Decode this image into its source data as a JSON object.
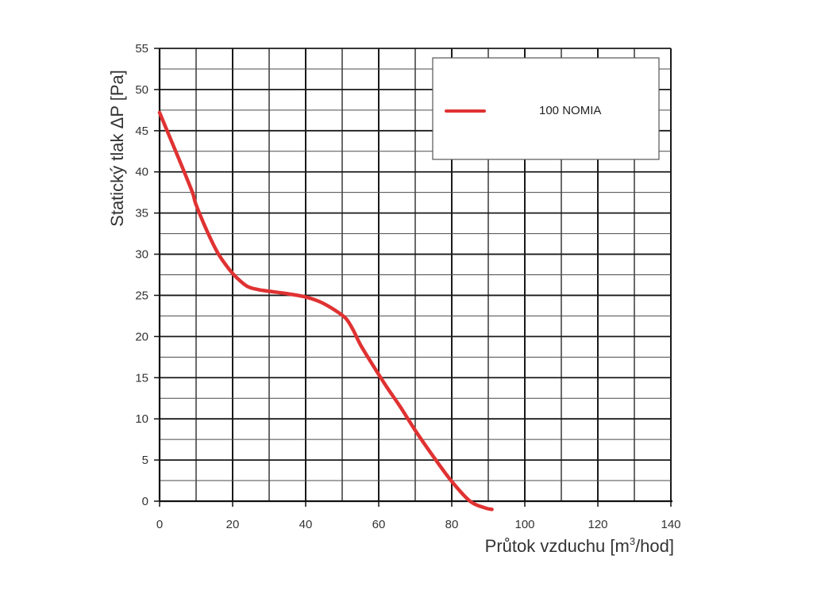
{
  "chart_data": {
    "type": "line",
    "title": "",
    "xlabel": "Průtok vzduchu [m³/hod]",
    "ylabel": "Statický tlak  ΔP [Pa]",
    "xlim": [
      0,
      140
    ],
    "ylim": [
      0,
      55
    ],
    "x_ticks": [
      0,
      20,
      40,
      60,
      80,
      100,
      120,
      140
    ],
    "y_ticks": [
      0,
      5,
      10,
      15,
      20,
      25,
      30,
      35,
      40,
      45,
      50,
      55
    ],
    "x_minor_step": 10,
    "y_minor_step": 2.5,
    "grid": true,
    "legend_position": "top-right",
    "series": [
      {
        "name": "100 NOMIA",
        "color": "#e03232",
        "x": [
          0,
          3,
          6,
          9,
          10,
          13,
          16,
          19,
          21,
          24,
          27,
          30,
          35,
          40,
          44,
          48,
          51,
          53,
          55,
          58,
          62,
          66,
          70,
          75,
          80,
          85,
          89,
          91
        ],
        "y": [
          47.2,
          44,
          40.8,
          37.5,
          36,
          32.8,
          30.1,
          28.2,
          27.2,
          26.1,
          25.7,
          25.5,
          25.2,
          24.8,
          24.2,
          23.2,
          22.2,
          20.8,
          19,
          16.8,
          14,
          11.4,
          8.6,
          5.4,
          2.4,
          0,
          -0.8,
          -1
        ]
      }
    ]
  }
}
